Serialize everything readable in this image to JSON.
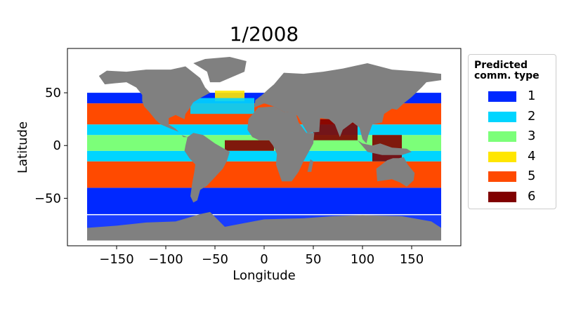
{
  "chart_data": {
    "type": "map",
    "title": "1/2008",
    "xlabel": "Longitude",
    "ylabel": "Latitude",
    "xlim": [
      -200,
      200
    ],
    "ylim": [
      -95,
      92
    ],
    "xticks": [
      -150,
      -100,
      -50,
      0,
      50,
      100,
      150
    ],
    "yticks": [
      -50,
      0,
      50
    ],
    "land_color": "#808080",
    "legend": {
      "title_line1": "Predicted",
      "title_line2": "comm. type",
      "placement": "right-outside",
      "entries": [
        {
          "label": "1",
          "color": "#0028ff"
        },
        {
          "label": "2",
          "color": "#00d5ff"
        },
        {
          "label": "3",
          "color": "#7cff79"
        },
        {
          "label": "4",
          "color": "#ffe600"
        },
        {
          "label": "5",
          "color": "#ff4a00"
        },
        {
          "label": "6",
          "color": "#800000"
        }
      ]
    },
    "latitude_bands": [
      {
        "type": "1",
        "lat": [
          -65,
          -40
        ]
      },
      {
        "type": "5",
        "lat": [
          -40,
          -15
        ]
      },
      {
        "type": "2",
        "lat": [
          -15,
          -5
        ]
      },
      {
        "type": "3",
        "lat": [
          -5,
          10
        ]
      },
      {
        "type": "2",
        "lat": [
          10,
          20
        ]
      },
      {
        "type": "5",
        "lat": [
          20,
          40
        ]
      },
      {
        "type": "1",
        "lat": [
          40,
          50
        ]
      }
    ],
    "patches": [
      {
        "type": "4",
        "lon": [
          -50,
          -20
        ],
        "lat": [
          42,
          52
        ]
      },
      {
        "type": "2",
        "lon": [
          -75,
          -10
        ],
        "lat": [
          30,
          45
        ]
      },
      {
        "type": "6",
        "lon": [
          50,
          95
        ],
        "lat": [
          5,
          25
        ]
      },
      {
        "type": "6",
        "lon": [
          -40,
          10
        ],
        "lat": [
          -5,
          5
        ]
      },
      {
        "type": "6",
        "lon": [
          110,
          140
        ],
        "lat": [
          -15,
          10
        ]
      },
      {
        "type": "1",
        "lon": [
          -180,
          180
        ],
        "lat": [
          -90,
          -66
        ]
      }
    ]
  }
}
